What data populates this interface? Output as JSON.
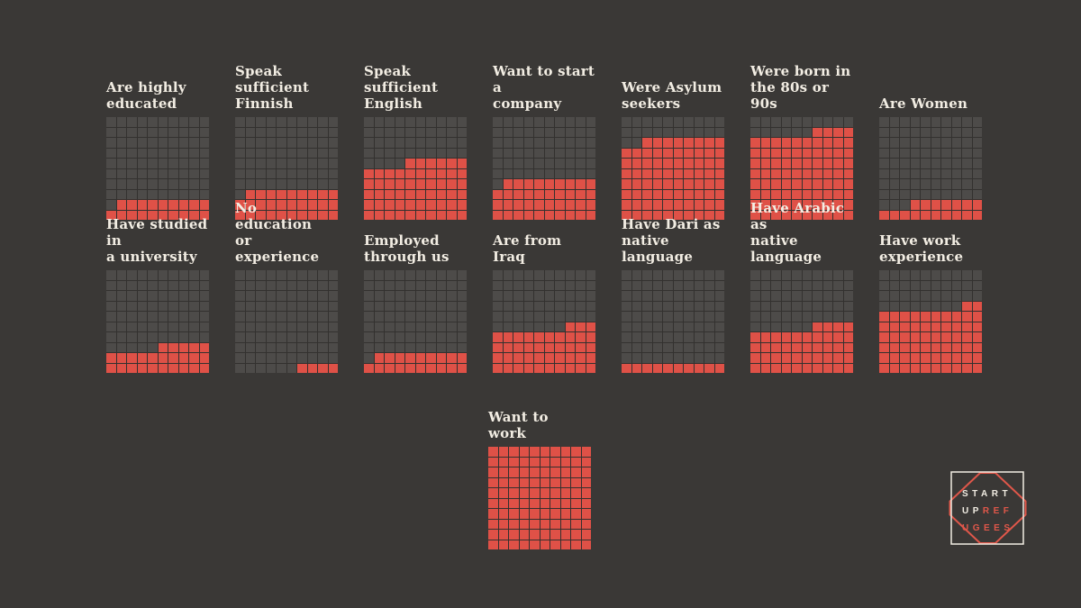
{
  "background": "#3a3836",
  "colors": {
    "filled_square": "#df5147",
    "empty_square": "#4d4b49",
    "gridline": "#33312f",
    "title_text": "#f2ede3",
    "logo_orange": "#e0574a",
    "logo_white": "#f2ede3"
  },
  "grid": {
    "rows": 10,
    "cols": 10,
    "total_squares": 100
  },
  "rows": [
    {
      "charts": [
        {
          "label": "Are highly\neducated",
          "value": 19
        },
        {
          "label": "Speak sufficient\nFinnish",
          "value": 29
        },
        {
          "label": "Speak sufficient\nEnglish",
          "value": 56
        },
        {
          "label": "Want to start a\ncompany",
          "value": 39
        },
        {
          "label": "Were Asylum\nseekers",
          "value": 78
        },
        {
          "label": "Were born in\nthe 80s or 90s",
          "value": 84
        },
        {
          "label": "Are Women",
          "value": 17
        }
      ]
    },
    {
      "charts": [
        {
          "label": "Have studied in\na university",
          "value": 25
        },
        {
          "label": "No education\nor experience",
          "value": 4
        },
        {
          "label": "Employed\nthrough us",
          "value": 19
        },
        {
          "label": "Are from Iraq",
          "value": 43
        },
        {
          "label": "Have Dari as\nnative language",
          "value": 10
        },
        {
          "label": "Have Arabic as\nnative language",
          "value": 44
        },
        {
          "label": "Have work\nexperience",
          "value": 62
        }
      ]
    },
    {
      "charts": [
        {
          "label": "Want to work",
          "value": 100
        }
      ]
    }
  ],
  "chart_data": {
    "type": "waffle",
    "unit": "filled squares out of 100 (percent)",
    "grid": {
      "rows": 10,
      "cols": 10
    },
    "categories": [
      "Are highly educated",
      "Speak sufficient Finnish",
      "Speak sufficient English",
      "Want to start a company",
      "Were Asylum seekers",
      "Were born in the 80s or 90s",
      "Are Women",
      "Have studied in a university",
      "No education or experience",
      "Employed through us",
      "Are from Iraq",
      "Have Dari as native language",
      "Have Arabic as native language",
      "Have work experience",
      "Want to work"
    ],
    "values": [
      19,
      29,
      56,
      39,
      78,
      84,
      17,
      25,
      4,
      19,
      43,
      10,
      44,
      62,
      100
    ],
    "legend_position": "none",
    "grid_lines": "on",
    "fill_rule": "filled from bottom-left; partial top row right-aligned"
  },
  "logo": {
    "line1": "START",
    "line2_white": "UP",
    "line2_orange": "REF",
    "line3": "UGEES"
  }
}
